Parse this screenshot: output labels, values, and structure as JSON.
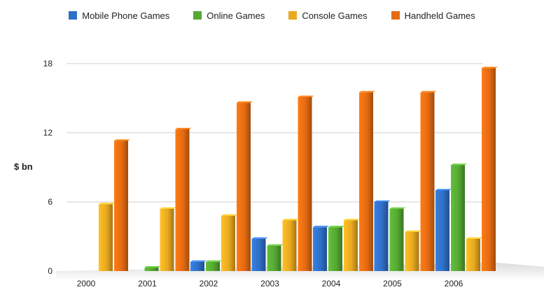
{
  "chart_data": {
    "type": "bar",
    "title": "",
    "xlabel": "",
    "ylabel": "$ bn",
    "ylim": [
      0,
      18
    ],
    "yticks": [
      0,
      6,
      12,
      18
    ],
    "grid": true,
    "legend_position": "top",
    "categories": [
      "2000",
      "2001",
      "2002",
      "2003",
      "2004",
      "2005",
      "2006"
    ],
    "series": [
      {
        "name": "Mobile Phone Games",
        "color": "#2f6fc6",
        "values": [
          0,
          0,
          0.8,
          2.8,
          3.8,
          6.0,
          7.0
        ]
      },
      {
        "name": "Online Games",
        "color": "#55a832",
        "values": [
          0,
          0.3,
          0.8,
          2.2,
          3.8,
          5.4,
          9.2
        ]
      },
      {
        "name": "Console Games",
        "color": "#e8a820",
        "values": [
          5.8,
          5.4,
          4.8,
          4.4,
          4.4,
          3.4,
          2.8
        ]
      },
      {
        "name": "Handheld Games",
        "color": "#e46b12",
        "values": [
          11.3,
          12.3,
          14.6,
          15.1,
          15.5,
          15.5,
          17.6
        ]
      }
    ]
  }
}
